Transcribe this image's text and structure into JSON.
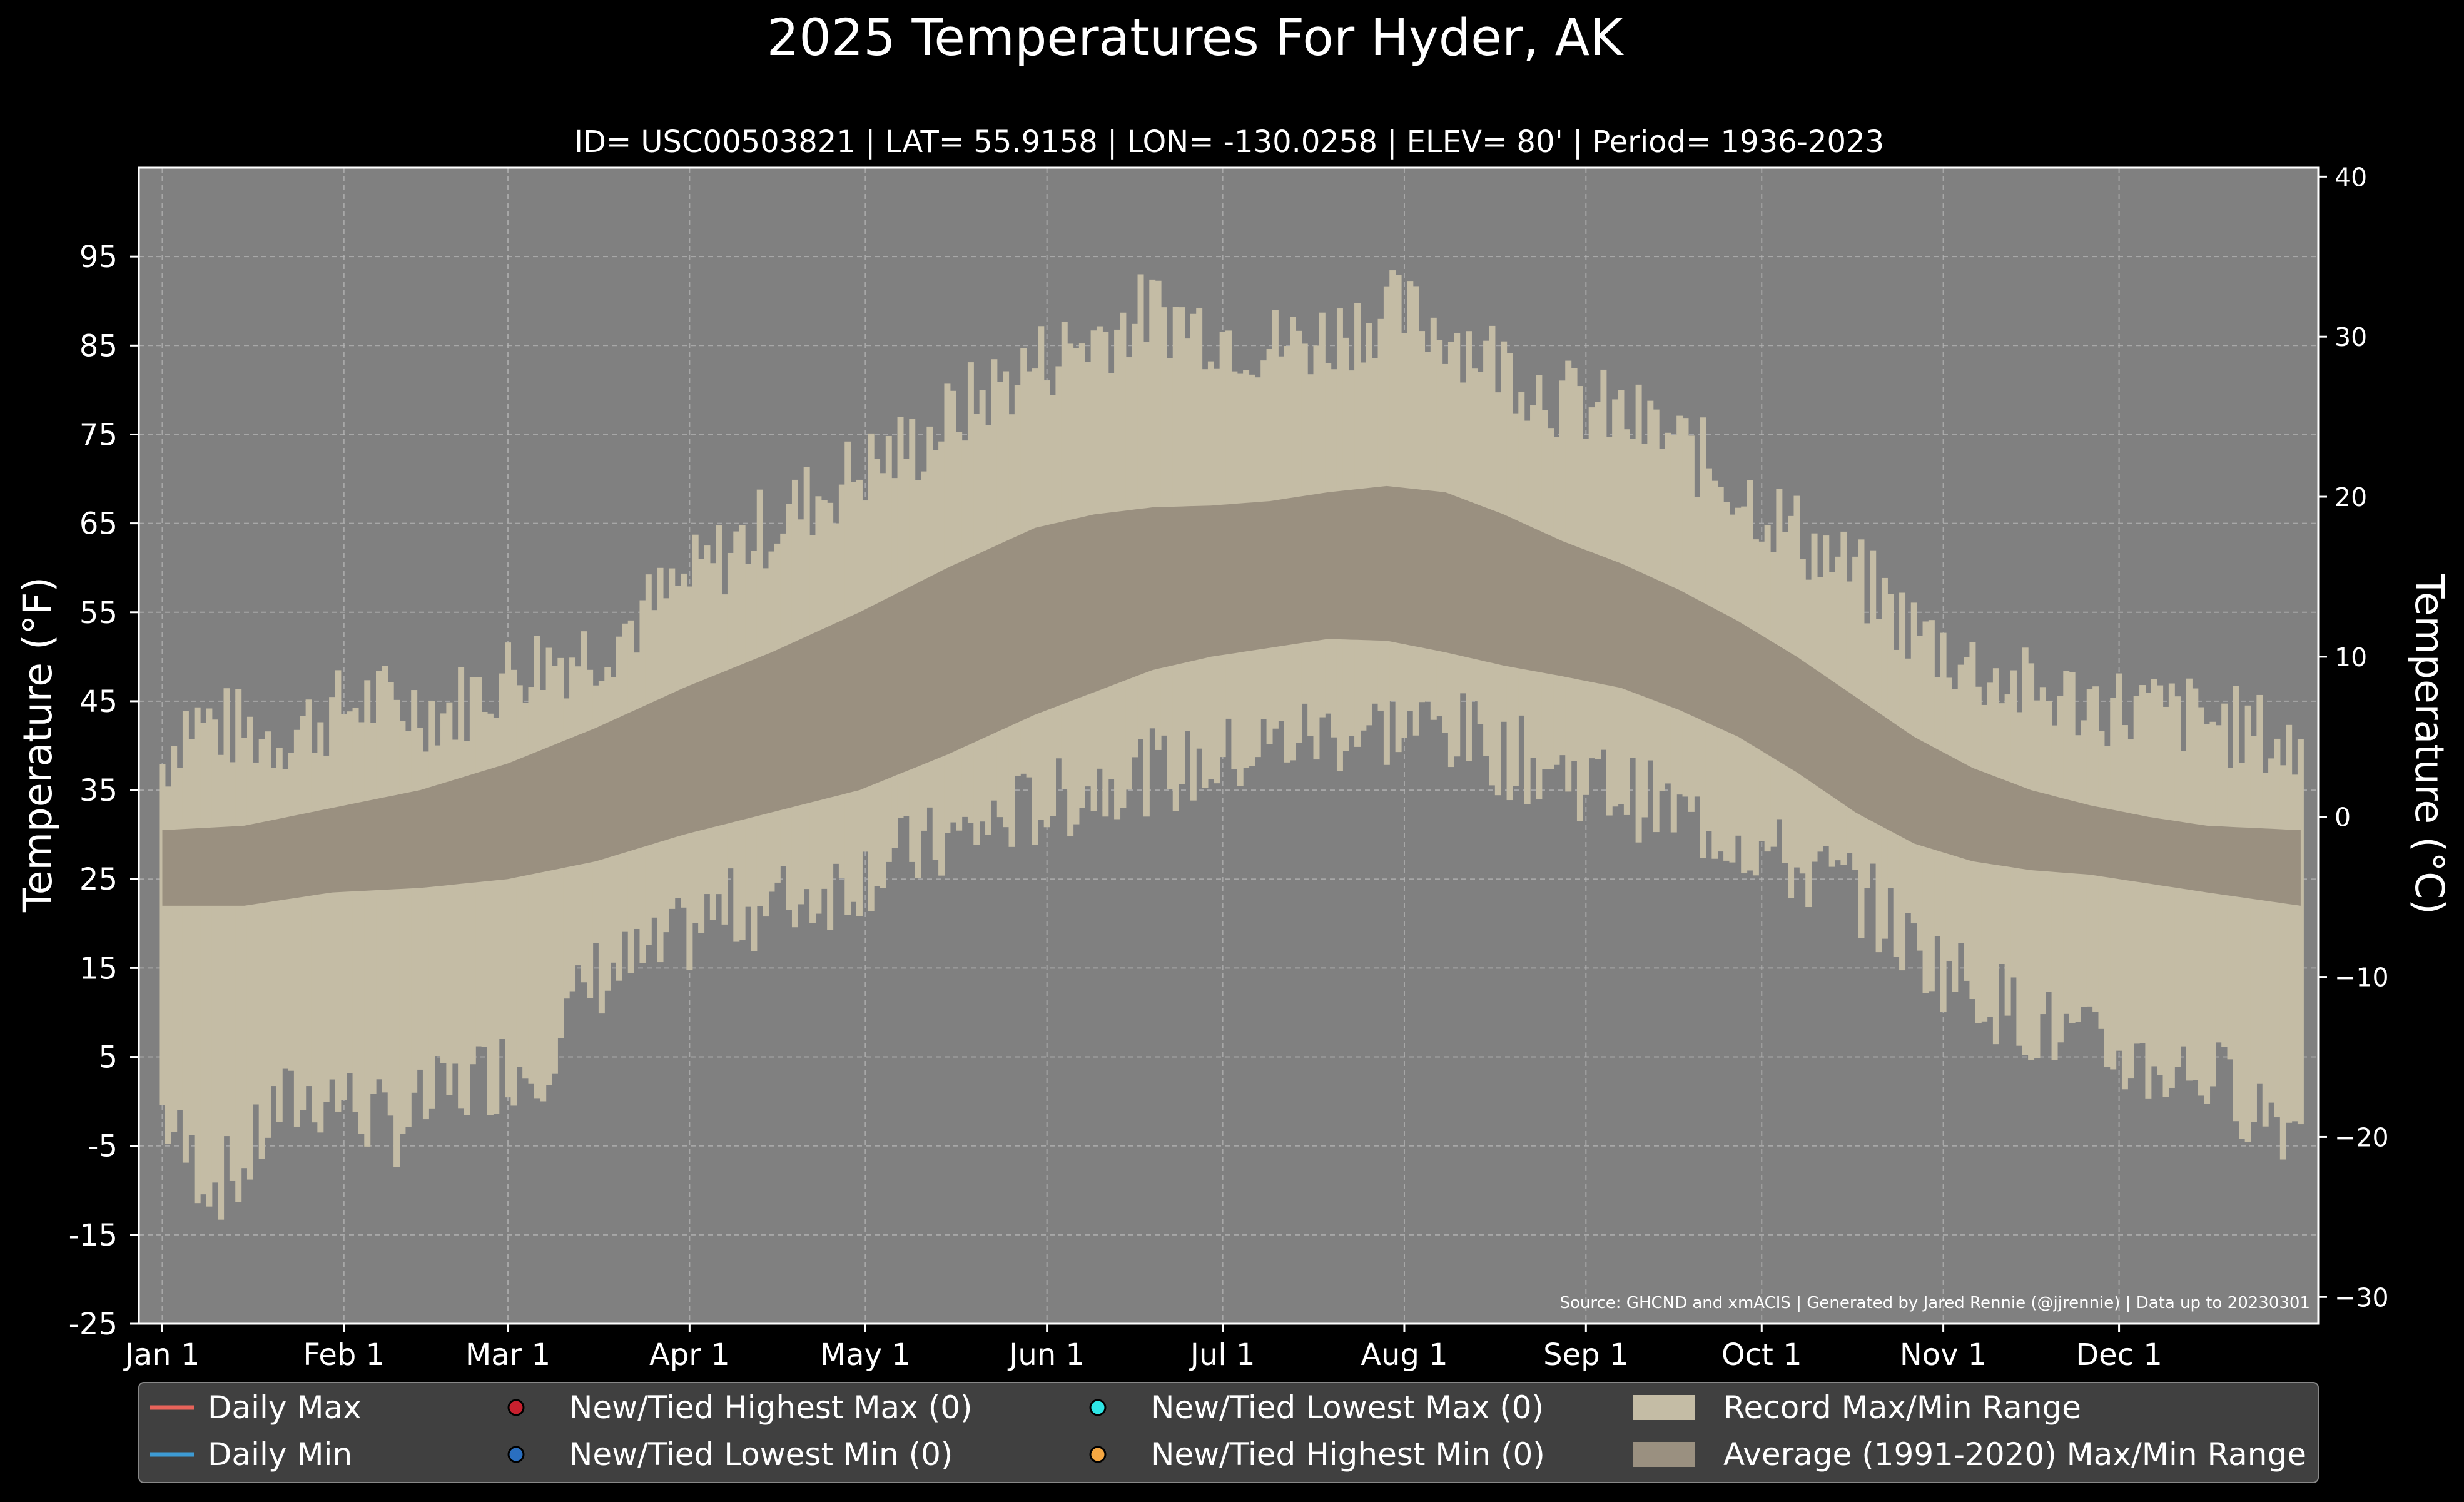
{
  "chart_data": {
    "type": "area",
    "title": "2025 Temperatures For Hyder, AK",
    "subtitle": "ID= USC00503821 | LAT= 55.9158 | LON= -130.0258 | ELEV= 80' | Period= 1936-2023",
    "ylabel_left": "Temperature ($^\\circ$F)",
    "ylabel_left_display": "Temperature (°F)",
    "ylabel_right_display": "Temperature (°C)",
    "ylim_f": [
      -25,
      105
    ],
    "ylim_c": [
      -31.67,
      40.56
    ],
    "y_ticks_f": [
      95,
      85,
      75,
      65,
      55,
      45,
      35,
      25,
      15,
      5,
      -5,
      -15,
      -25
    ],
    "y_tick_labels_f": [
      "95",
      "85",
      "75",
      "65",
      "55",
      "45",
      "35",
      "25",
      "15",
      "5",
      "-5",
      "-15",
      "-25"
    ],
    "y_ticks_c": [
      40,
      30,
      20,
      10,
      0,
      -10,
      -20,
      -30
    ],
    "y_tick_labels_c": [
      "40",
      "30",
      "20",
      "10",
      "0",
      "−10",
      "−20",
      "−30"
    ],
    "x_ticks": [
      {
        "day": 1,
        "label": "Jan 1"
      },
      {
        "day": 32,
        "label": "Feb 1"
      },
      {
        "day": 60,
        "label": "Mar 1"
      },
      {
        "day": 91,
        "label": "Apr 1"
      },
      {
        "day": 121,
        "label": "May 1"
      },
      {
        "day": 152,
        "label": "Jun 1"
      },
      {
        "day": 182,
        "label": "Jul 1"
      },
      {
        "day": 213,
        "label": "Aug 1"
      },
      {
        "day": 244,
        "label": "Sep 1"
      },
      {
        "day": 274,
        "label": "Oct 1"
      },
      {
        "day": 305,
        "label": "Nov 1"
      },
      {
        "day": 335,
        "label": "Dec 1"
      }
    ],
    "xlim_days": [
      -3,
      369
    ],
    "grid": true,
    "source_note": "Source: GHCND and xmACIS | Generated by Jared Rennie (@jjrennie) | Data up to 20230301",
    "record_max_knots": [
      [
        1,
        37
      ],
      [
        5,
        42
      ],
      [
        20,
        40
      ],
      [
        35,
        44
      ],
      [
        50,
        43
      ],
      [
        62,
        48
      ],
      [
        75,
        50
      ],
      [
        90,
        57
      ],
      [
        100,
        62
      ],
      [
        110,
        66
      ],
      [
        120,
        70
      ],
      [
        130,
        73
      ],
      [
        140,
        78
      ],
      [
        150,
        82
      ],
      [
        160,
        85
      ],
      [
        170,
        88
      ],
      [
        180,
        86
      ],
      [
        190,
        84
      ],
      [
        200,
        85
      ],
      [
        210,
        88
      ],
      [
        220,
        86
      ],
      [
        230,
        82
      ],
      [
        240,
        78
      ],
      [
        250,
        76
      ],
      [
        260,
        73
      ],
      [
        270,
        68
      ],
      [
        280,
        63
      ],
      [
        290,
        58
      ],
      [
        300,
        52
      ],
      [
        310,
        48
      ],
      [
        320,
        45
      ],
      [
        330,
        44
      ],
      [
        340,
        43
      ],
      [
        350,
        42
      ],
      [
        360,
        40
      ],
      [
        366,
        38
      ]
    ],
    "record_min_knots": [
      [
        1,
        0
      ],
      [
        5,
        -5
      ],
      [
        10,
        -8
      ],
      [
        15,
        -7
      ],
      [
        20,
        0
      ],
      [
        30,
        2
      ],
      [
        40,
        -2
      ],
      [
        50,
        2
      ],
      [
        60,
        5
      ],
      [
        65,
        5
      ],
      [
        75,
        15
      ],
      [
        85,
        17
      ],
      [
        95,
        22
      ],
      [
        105,
        23
      ],
      [
        115,
        25
      ],
      [
        125,
        28
      ],
      [
        135,
        30
      ],
      [
        145,
        33
      ],
      [
        155,
        35
      ],
      [
        165,
        38
      ],
      [
        175,
        38
      ],
      [
        185,
        40
      ],
      [
        195,
        42
      ],
      [
        210,
        43
      ],
      [
        220,
        43
      ],
      [
        230,
        40
      ],
      [
        240,
        38
      ],
      [
        250,
        36
      ],
      [
        260,
        33
      ],
      [
        270,
        31
      ],
      [
        280,
        27
      ],
      [
        290,
        25
      ],
      [
        300,
        18
      ],
      [
        310,
        14
      ],
      [
        320,
        10
      ],
      [
        330,
        7
      ],
      [
        340,
        5
      ],
      [
        350,
        4
      ],
      [
        360,
        0
      ],
      [
        366,
        -2
      ]
    ],
    "avg_max_knots": [
      [
        1,
        30.5
      ],
      [
        15,
        31
      ],
      [
        30,
        33
      ],
      [
        45,
        35
      ],
      [
        60,
        38
      ],
      [
        75,
        42
      ],
      [
        90,
        46.5
      ],
      [
        105,
        50.5
      ],
      [
        120,
        55
      ],
      [
        135,
        60
      ],
      [
        150,
        64.5
      ],
      [
        160,
        66
      ],
      [
        170,
        66.8
      ],
      [
        180,
        67
      ],
      [
        190,
        67.5
      ],
      [
        200,
        68.5
      ],
      [
        210,
        69.2
      ],
      [
        220,
        68.5
      ],
      [
        230,
        66
      ],
      [
        240,
        63
      ],
      [
        250,
        60.5
      ],
      [
        260,
        57.5
      ],
      [
        270,
        54
      ],
      [
        280,
        50
      ],
      [
        290,
        45.5
      ],
      [
        300,
        41
      ],
      [
        310,
        37.5
      ],
      [
        320,
        35
      ],
      [
        330,
        33.3
      ],
      [
        340,
        32
      ],
      [
        350,
        31
      ],
      [
        366,
        30.5
      ]
    ],
    "avg_min_knots": [
      [
        1,
        22
      ],
      [
        15,
        22
      ],
      [
        30,
        23.5
      ],
      [
        45,
        24
      ],
      [
        60,
        25
      ],
      [
        75,
        27
      ],
      [
        90,
        30
      ],
      [
        105,
        32.5
      ],
      [
        120,
        35
      ],
      [
        135,
        39
      ],
      [
        150,
        43.5
      ],
      [
        160,
        46
      ],
      [
        170,
        48.5
      ],
      [
        180,
        50
      ],
      [
        190,
        51
      ],
      [
        200,
        52
      ],
      [
        210,
        51.8
      ],
      [
        220,
        50.5
      ],
      [
        230,
        49
      ],
      [
        240,
        47.8
      ],
      [
        250,
        46.5
      ],
      [
        260,
        44
      ],
      [
        270,
        41
      ],
      [
        280,
        37
      ],
      [
        290,
        32.5
      ],
      [
        300,
        29
      ],
      [
        310,
        27
      ],
      [
        320,
        26
      ],
      [
        330,
        25.5
      ],
      [
        340,
        24.5
      ],
      [
        350,
        23.5
      ],
      [
        366,
        22
      ]
    ],
    "legend": {
      "position": "bottom",
      "entries": [
        {
          "label": "Daily Max",
          "kind": "line",
          "color": "#e8635a"
        },
        {
          "label": "Daily Min",
          "kind": "line",
          "color": "#3d9bd4"
        },
        {
          "label": "New/Tied Highest Max (0)",
          "kind": "marker",
          "color": "#c8202e"
        },
        {
          "label": "New/Tied Lowest Min (0)",
          "kind": "marker",
          "color": "#2a6fc0"
        },
        {
          "label": "New/Tied Lowest Max (0)",
          "kind": "marker",
          "color": "#2ee6e6"
        },
        {
          "label": "New/Tied Highest Min (0)",
          "kind": "marker",
          "color": "#f5a742"
        },
        {
          "label": "Record Max/Min Range",
          "kind": "patch",
          "color": "#c4bca5"
        },
        {
          "label": "Average (1991-2020) Max/Min Range",
          "kind": "patch",
          "color": "#9a9080"
        }
      ]
    },
    "colors": {
      "background": "#000000",
      "plot_background": "#808080",
      "record_fill": "#c4bca5",
      "average_fill": "#9a9080",
      "legend_background": "#404040"
    }
  }
}
